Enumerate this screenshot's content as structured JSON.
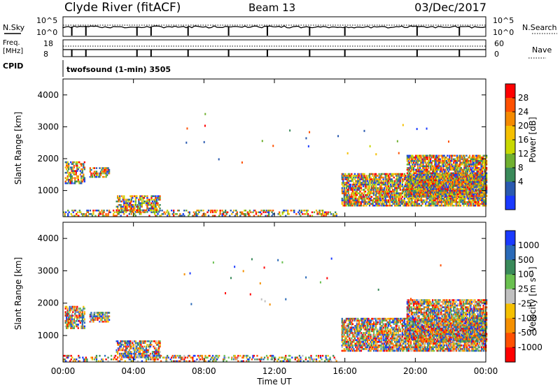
{
  "header": {
    "station": "Clyde River (fitACF)",
    "beam": "Beam 13",
    "date": "03/Dec/2017"
  },
  "summary_panels": {
    "nsky_label": "N.Sky",
    "nsky_ticks": [
      "10^5",
      "10^0"
    ],
    "nsearch_label": "N.Search",
    "nsearch_ticks": [
      "10^5",
      "10^0"
    ],
    "freq_label": "Freq.",
    "freq_unit": "[MHz]",
    "freq_ticks": [
      "18",
      "8"
    ],
    "nave_label": "Nave",
    "nave_ticks": [
      "60",
      "0"
    ],
    "cpid_label": "CPID",
    "cpid_value": "twofsound (1-min) 3505"
  },
  "chart_data": [
    {
      "type": "heatmap",
      "name": "power",
      "ylabel": "Slant Range [km]",
      "yticks": [
        "4000",
        "3000",
        "2000",
        "1000"
      ],
      "ylim": [
        180,
        4500
      ],
      "xlim_hours": [
        0,
        24
      ],
      "colorbar_label": "Power [dB]",
      "colorbar_ticks": [
        "28",
        "24",
        "20",
        "16",
        "12",
        "8",
        "4"
      ],
      "colorbar_colors": [
        "#ff0000",
        "#ff5000",
        "#f58a00",
        "#f5c000",
        "#c8d800",
        "#70b030",
        "#3a8a5a",
        "#2a5ab0",
        "#1a3aff"
      ],
      "scatter_regions": [
        {
          "hours": [
            0.1,
            1.2
          ],
          "range_km": [
            1200,
            1900
          ]
        },
        {
          "hours": [
            1.5,
            2.6
          ],
          "range_km": [
            1400,
            1700
          ]
        },
        {
          "hours": [
            3.0,
            5.5
          ],
          "range_km": [
            300,
            800
          ]
        },
        {
          "hours": [
            0,
            15.5
          ],
          "range_km": [
            180,
            400
          ]
        },
        {
          "hours": [
            15.8,
            24
          ],
          "range_km": [
            500,
            1500
          ]
        },
        {
          "hours": [
            19.5,
            24
          ],
          "range_km": [
            800,
            2100
          ]
        }
      ]
    },
    {
      "type": "heatmap",
      "name": "velocity",
      "ylabel": "Slant Range [km]",
      "yticks": [
        "4000",
        "3000",
        "2000",
        "1000"
      ],
      "ylim": [
        180,
        4500
      ],
      "xlim_hours": [
        0,
        24
      ],
      "xlabel": "Time UT",
      "xticks": [
        "00:00",
        "04:00",
        "08:00",
        "12:00",
        "16:00",
        "20:00",
        "00:00"
      ],
      "colorbar_label": "Velocity [m s⁻¹]",
      "colorbar_ticks": [
        "1000",
        "500",
        "100",
        "25",
        "-25",
        "-100",
        "-500",
        "-1000"
      ],
      "colorbar_colors": [
        "#1a3aff",
        "#2a6ab8",
        "#3a8a5a",
        "#6ac050",
        "#c0c0c0",
        "#f5c000",
        "#f59000",
        "#ff5000",
        "#ff0000"
      ],
      "scatter_regions": [
        {
          "hours": [
            0.1,
            1.2
          ],
          "range_km": [
            1200,
            1900
          ]
        },
        {
          "hours": [
            1.5,
            2.6
          ],
          "range_km": [
            1400,
            1700
          ]
        },
        {
          "hours": [
            3.0,
            5.5
          ],
          "range_km": [
            300,
            800
          ]
        },
        {
          "hours": [
            0,
            15.5
          ],
          "range_km": [
            180,
            400
          ]
        },
        {
          "hours": [
            15.8,
            24
          ],
          "range_km": [
            500,
            1500
          ]
        },
        {
          "hours": [
            19.5,
            24
          ],
          "range_km": [
            800,
            2100
          ]
        }
      ]
    }
  ]
}
